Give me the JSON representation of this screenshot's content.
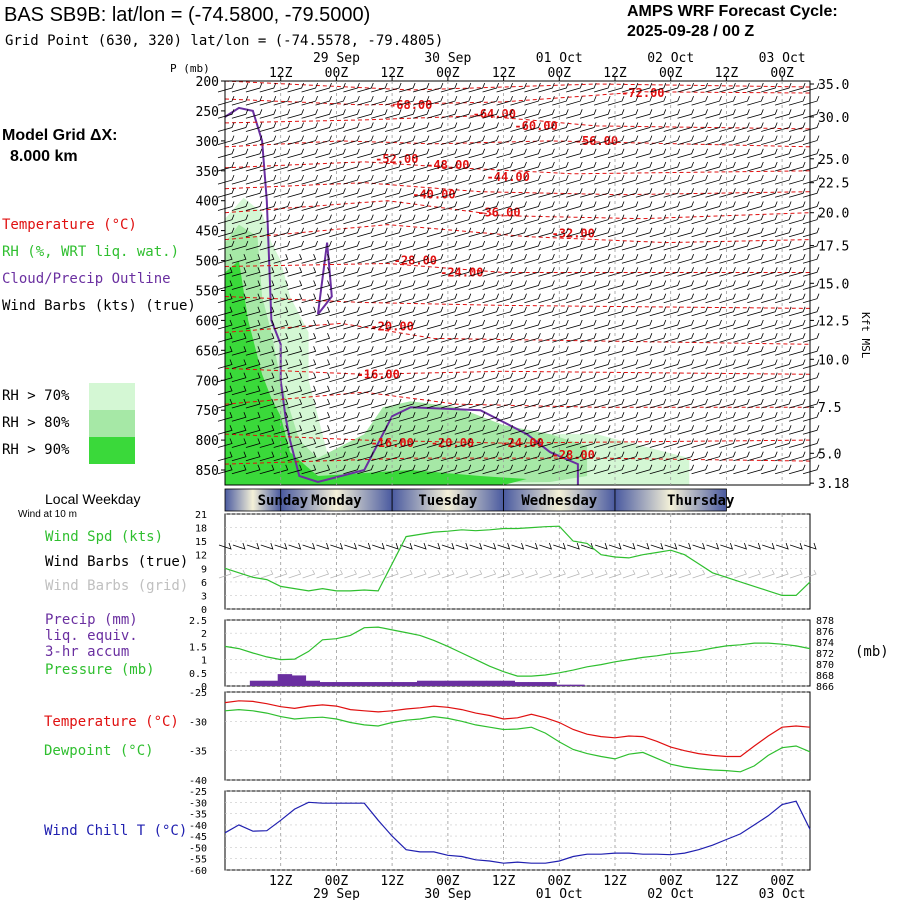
{
  "header": {
    "station_title": "BAS SB9B:  lat/lon = (-74.5800, -79.5000)",
    "grid_point": "Grid Point (630, 320) lat/lon = (-74.5578, -79.4805)",
    "forecast_cycle_label": "AMPS WRF Forecast Cycle:",
    "forecast_cycle_value": "2025-09-28 / 00  Z"
  },
  "left_panel": {
    "model_grid_label": "Model Grid ΔX:",
    "model_grid_value": "8.000 km",
    "legend_temperature": "Temperature (°C)",
    "legend_rh": "RH (%, WRT liq. wat.)",
    "legend_cloud": "Cloud/Precip Outline",
    "legend_wind": "Wind Barbs (kts) (true)",
    "rh_70": "RH > 70%",
    "rh_80": "RH > 80%",
    "rh_90": "RH > 90%"
  },
  "colors": {
    "temperature": "#e01010",
    "rh70": "#d4f7d4",
    "rh80": "#a6e8a6",
    "rh90": "#3ad93a",
    "cloud": "#6a2fa0",
    "pressure": "#2fbf2f",
    "windchill": "#2020b0",
    "grid": "#9a9a9a"
  },
  "time_axis": {
    "top_hours": [
      "12Z",
      "00Z",
      "12Z",
      "00Z",
      "12Z",
      "00Z",
      "12Z",
      "00Z",
      "12Z",
      "00Z"
    ],
    "top_dates": [
      "29 Sep",
      "30 Sep",
      "01 Oct",
      "02 Oct",
      "03 Oct"
    ],
    "bottom_hours": [
      "12Z",
      "00Z",
      "12Z",
      "00Z",
      "12Z",
      "00Z",
      "12Z",
      "00Z",
      "12Z",
      "00Z"
    ],
    "bottom_dates": [
      "29 Sep",
      "30 Sep",
      "01 Oct",
      "02 Oct",
      "03 Oct"
    ]
  },
  "weekday_bar": {
    "label": "Local Weekday",
    "sublabel": "Wind at 10 m",
    "days": [
      "Sunday",
      "Monday",
      "Tuesday",
      "Wednesday",
      "Thursday"
    ]
  },
  "chart_data": [
    {
      "type": "heatmap",
      "name": "cross-section",
      "p_axis_label": "P (mb)",
      "p_ticks": [
        200,
        250,
        300,
        350,
        400,
        450,
        500,
        550,
        600,
        650,
        700,
        750,
        800,
        850
      ],
      "right_axis_label": "Kft MSL",
      "kft_ticks": [
        "35.0",
        "30.0",
        "25.0",
        "22.5",
        "20.0",
        "17.5",
        "15.0",
        "12.5",
        "10.0",
        "7.5",
        "5.0",
        "3.18"
      ],
      "kft_positions_mb": [
        205,
        260,
        330,
        370,
        420,
        475,
        538,
        600,
        665,
        745,
        822,
        872
      ],
      "x_hours": [
        0,
        126
      ],
      "p_range": [
        200,
        875
      ],
      "temperature_labels": [
        {
          "value": "-72.00",
          "hour": 90,
          "p": 220
        },
        {
          "value": "-68.00",
          "hour": 40,
          "p": 240
        },
        {
          "value": "-64.00",
          "hour": 58,
          "p": 255
        },
        {
          "value": "-60.00",
          "hour": 67,
          "p": 275
        },
        {
          "value": "-56.00",
          "hour": 80,
          "p": 300
        },
        {
          "value": "-52.00",
          "hour": 37,
          "p": 330
        },
        {
          "value": "-48.00",
          "hour": 48,
          "p": 340
        },
        {
          "value": "-44.00",
          "hour": 61,
          "p": 360
        },
        {
          "value": "-40.00",
          "hour": 45,
          "p": 390
        },
        {
          "value": "-36.00",
          "hour": 59,
          "p": 420
        },
        {
          "value": "-32.00",
          "hour": 75,
          "p": 455
        },
        {
          "value": "-28.00",
          "hour": 41,
          "p": 500
        },
        {
          "value": "-24.00",
          "hour": 51,
          "p": 520
        },
        {
          "value": "-20.00",
          "hour": 36,
          "p": 610
        },
        {
          "value": "-16.00",
          "hour": 33,
          "p": 690
        },
        {
          "value": "-16.00",
          "hour": 36,
          "p": 805
        },
        {
          "value": "-20.00",
          "hour": 49,
          "p": 805
        },
        {
          "value": "-24.00",
          "hour": 64,
          "p": 805
        },
        {
          "value": "-28.00",
          "hour": 75,
          "p": 825
        }
      ]
    },
    {
      "type": "line",
      "name": "wind-speed",
      "series_label": "Wind Spd (kts)",
      "barbs_true_label": "Wind Barbs (true)",
      "barbs_grid_label": "Wind Barbs (grid)",
      "y_ticks": [
        0,
        3,
        6,
        9,
        12,
        15,
        18,
        21
      ],
      "ylim": [
        0,
        21
      ],
      "x": [
        0,
        3,
        6,
        9,
        12,
        15,
        18,
        21,
        24,
        27,
        30,
        33,
        36,
        39,
        42,
        45,
        48,
        51,
        54,
        57,
        60,
        63,
        66,
        69,
        72,
        75,
        78,
        81,
        84,
        87,
        90,
        93,
        96,
        99,
        102,
        105,
        108,
        111,
        114,
        117,
        120,
        123,
        126
      ],
      "values": [
        9,
        8,
        7,
        6.5,
        5,
        4.5,
        4,
        4.5,
        4,
        4,
        4.2,
        4,
        10,
        16,
        16.5,
        17,
        17.2,
        17.5,
        17.3,
        17.5,
        17.8,
        17.8,
        18,
        18.2,
        18.3,
        15,
        14.5,
        12,
        11.5,
        11.3,
        12,
        12.5,
        13,
        12,
        10,
        8,
        7,
        6,
        5,
        4,
        3,
        3,
        6
      ]
    },
    {
      "type": "line",
      "name": "precip-pressure",
      "precip_label": "Precip (mm)",
      "precip_sub1": "liq. equiv.",
      "precip_sub2": "3-hr accum",
      "pressure_label": "Pressure (mb)",
      "pressure_unit": "(mb)",
      "precip_ticks": [
        "2.5",
        "2",
        "1.5",
        "1",
        "0.5",
        "0"
      ],
      "pressure_ticks": [
        878,
        876,
        874,
        872,
        870,
        868,
        866
      ],
      "precip_ylim": [
        0,
        2.5
      ],
      "pressure_ylim": [
        866,
        878
      ],
      "x": [
        0,
        3,
        6,
        9,
        12,
        15,
        18,
        21,
        24,
        27,
        30,
        33,
        36,
        39,
        42,
        45,
        48,
        51,
        54,
        57,
        60,
        63,
        66,
        69,
        72,
        75,
        78,
        81,
        84,
        87,
        90,
        93,
        96,
        99,
        102,
        105,
        108,
        111,
        114,
        117,
        120,
        123,
        126
      ],
      "pressure": [
        873.2,
        872.8,
        872.0,
        871.3,
        870.8,
        870.9,
        872.3,
        874.4,
        874.6,
        875.2,
        876.6,
        876.7,
        876.2,
        875.7,
        875.2,
        874.3,
        873.2,
        872.0,
        870.8,
        869.6,
        868.6,
        867.8,
        867.8,
        868.0,
        868.4,
        868.9,
        869.5,
        869.9,
        870.4,
        870.8,
        871.2,
        871.5,
        871.9,
        872.1,
        872.4,
        872.9,
        873.3,
        873.5,
        873.8,
        873.8,
        873.6,
        873.3,
        872.8
      ],
      "precip": [
        0,
        0,
        0.2,
        0.2,
        0.45,
        0.4,
        0.2,
        0.15,
        0.15,
        0.15,
        0.15,
        0.15,
        0.15,
        0.15,
        0.2,
        0.2,
        0.2,
        0.2,
        0.2,
        0.2,
        0.2,
        0.15,
        0.15,
        0.15,
        0.05,
        0.05,
        0,
        0,
        0,
        0,
        0,
        0,
        0,
        0,
        0,
        0,
        0,
        0,
        0,
        0,
        0,
        0,
        0
      ]
    },
    {
      "type": "line",
      "name": "temperature-dewpoint",
      "temperature_label": "Temperature (°C)",
      "dewpoint_label": "Dewpoint (°C)",
      "y_ticks": [
        -25,
        -30,
        -35,
        -40
      ],
      "ylim": [
        -40,
        -25
      ],
      "x": [
        0,
        3,
        6,
        9,
        12,
        15,
        18,
        21,
        24,
        27,
        30,
        33,
        36,
        39,
        42,
        45,
        48,
        51,
        54,
        57,
        60,
        63,
        66,
        69,
        72,
        75,
        78,
        81,
        84,
        87,
        90,
        93,
        96,
        99,
        102,
        105,
        108,
        111,
        114,
        117,
        120,
        123,
        126
      ],
      "temperature": [
        -26.8,
        -26.5,
        -26.6,
        -27.0,
        -27.5,
        -27.8,
        -27.4,
        -27.2,
        -27.4,
        -28.0,
        -28.2,
        -28.4,
        -28.2,
        -27.9,
        -27.7,
        -27.4,
        -27.6,
        -28.0,
        -28.6,
        -29.0,
        -29.6,
        -29.4,
        -28.8,
        -29.4,
        -30.2,
        -31.4,
        -32.2,
        -32.6,
        -32.8,
        -32.5,
        -32.6,
        -33.4,
        -34.4,
        -35.0,
        -35.5,
        -35.8,
        -36.0,
        -36.0,
        -34.2,
        -32.5,
        -31.0,
        -30.8,
        -31.0
      ],
      "dewpoint": [
        -28.2,
        -28.0,
        -28.2,
        -28.6,
        -29.2,
        -29.6,
        -29.4,
        -29.3,
        -29.6,
        -30.2,
        -30.6,
        -30.8,
        -30.2,
        -29.8,
        -29.6,
        -29.2,
        -29.5,
        -30.0,
        -30.6,
        -31.0,
        -31.4,
        -31.3,
        -31.0,
        -32.0,
        -33.5,
        -34.8,
        -35.5,
        -36.0,
        -36.4,
        -35.6,
        -35.3,
        -36.3,
        -37.3,
        -37.8,
        -38.1,
        -38.3,
        -38.4,
        -38.6,
        -37.6,
        -35.8,
        -34.5,
        -34.2,
        -35.2
      ]
    },
    {
      "type": "line",
      "name": "wind-chill",
      "series_label": "Wind Chill T (°C)",
      "y_ticks": [
        -25,
        -30,
        -35,
        -40,
        -45,
        -50,
        -55,
        -60
      ],
      "ylim": [
        -60,
        -25
      ],
      "x": [
        0,
        3,
        6,
        9,
        12,
        15,
        18,
        21,
        24,
        27,
        30,
        33,
        36,
        39,
        42,
        45,
        48,
        51,
        54,
        57,
        60,
        63,
        66,
        69,
        72,
        75,
        78,
        81,
        84,
        87,
        90,
        93,
        96,
        99,
        102,
        105,
        108,
        111,
        114,
        117,
        120,
        123,
        126
      ],
      "values": [
        -43.5,
        -40.0,
        -42.8,
        -42.6,
        -38.0,
        -33.0,
        -30.0,
        -30.4,
        -30.4,
        -30.4,
        -30.4,
        -38.0,
        -45.0,
        -51.0,
        -52.0,
        -52.0,
        -53.5,
        -54.0,
        -55.5,
        -56.0,
        -57.0,
        -56.5,
        -57.0,
        -57.0,
        -56.0,
        -54.0,
        -53.0,
        -53.0,
        -52.5,
        -52.5,
        -53.0,
        -53.0,
        -53.2,
        -52.5,
        -51.0,
        -49.0,
        -46.5,
        -44.0,
        -40.0,
        -36.0,
        -31.0,
        -29.5,
        -42.0
      ]
    }
  ]
}
